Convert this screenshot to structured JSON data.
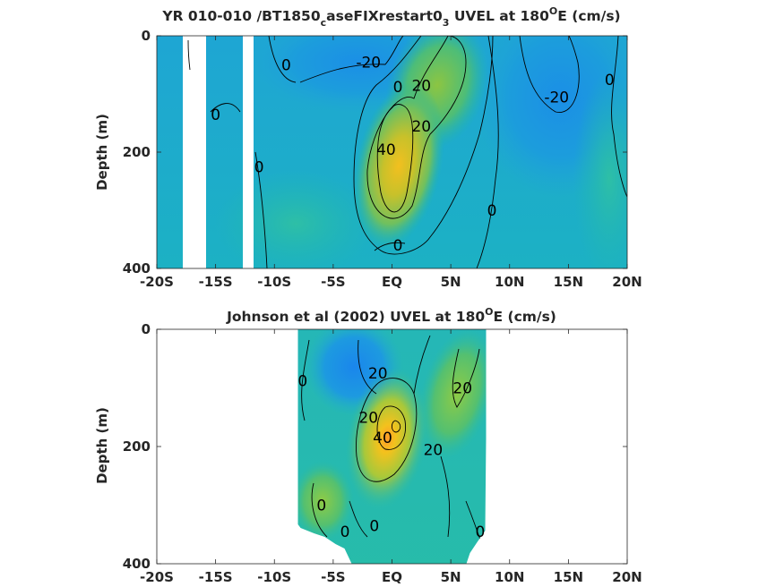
{
  "chart_data": [
    {
      "type": "heatmap",
      "title_main": "YR 010-010 /BT1850",
      "title_sub1": "c",
      "title_mid": "aseFIXrestart0",
      "title_sub2": "3",
      "title_tail_pre": " UVEL at 180",
      "title_sup": "O",
      "title_tail": "E (cm/s)",
      "ylabel": "Depth (m)",
      "xlim": [
        -20,
        20
      ],
      "ylim": [
        0,
        400
      ],
      "x_ticks": [
        -20,
        -15,
        -10,
        -5,
        0,
        5,
        10,
        15,
        20
      ],
      "x_tick_labels": [
        "-20S",
        "-15S",
        "-10S",
        "-5S",
        "EQ",
        "5N",
        "10N",
        "15N",
        "20N"
      ],
      "y_ticks": [
        0,
        200,
        400
      ],
      "y_tick_labels": [
        "0",
        "200",
        "400"
      ],
      "contour_levels_cm_s": [
        -20,
        0,
        20,
        40
      ],
      "data_gaps_lat": [
        [
          -17.5,
          -16.0
        ],
        [
          -12.5,
          -12.0
        ]
      ],
      "features": [
        {
          "label": "40",
          "lat": -0.5,
          "depth": 195,
          "description": "core"
        },
        {
          "label": "20",
          "lat": 2.5,
          "depth": 85
        },
        {
          "label": "20",
          "lat": 2.5,
          "depth": 155
        },
        {
          "label": "0",
          "lat": 0.5,
          "depth": 88
        },
        {
          "label": "0",
          "lat": 0.5,
          "depth": 360
        },
        {
          "label": "0",
          "lat": 8.5,
          "depth": 300
        },
        {
          "label": "0",
          "lat": 18.5,
          "depth": 75
        },
        {
          "label": "0",
          "lat": -9.0,
          "depth": 50
        },
        {
          "label": "0",
          "lat": -11.3,
          "depth": 225
        },
        {
          "label": "0",
          "lat": -15.0,
          "depth": 135
        },
        {
          "label": "-20",
          "lat": -2.0,
          "depth": 45
        },
        {
          "label": "-20",
          "lat": 14.0,
          "depth": 105
        }
      ]
    },
    {
      "type": "heatmap",
      "title_pre": "Johnson et al (2002) UVEL at 180",
      "title_sup": "O",
      "title_tail": "E (cm/s)",
      "ylabel": "Depth (m)",
      "xlim": [
        -20,
        20
      ],
      "ylim": [
        0,
        400
      ],
      "x_ticks": [
        -20,
        -15,
        -10,
        -5,
        0,
        5,
        10,
        15,
        20
      ],
      "x_tick_labels": [
        "-20S",
        "-15S",
        "-10S",
        "-5S",
        "EQ",
        "5N",
        "10N",
        "15N",
        "20N"
      ],
      "y_ticks": [
        0,
        200,
        400
      ],
      "y_tick_labels": [
        "0",
        "200",
        "400"
      ],
      "data_lat_range": [
        -8,
        8
      ],
      "features": [
        {
          "label": "40",
          "lat": -0.8,
          "depth": 185,
          "description": "core"
        },
        {
          "label": "20",
          "lat": -1.2,
          "depth": 75
        },
        {
          "label": "20",
          "lat": -2.0,
          "depth": 150
        },
        {
          "label": "20",
          "lat": 3.5,
          "depth": 205
        },
        {
          "label": "20",
          "lat": 6.0,
          "depth": 100
        },
        {
          "label": "0",
          "lat": -7.6,
          "depth": 88
        },
        {
          "label": "0",
          "lat": -6.0,
          "depth": 300
        },
        {
          "label": "0",
          "lat": -4.0,
          "depth": 345
        },
        {
          "label": "0",
          "lat": -1.5,
          "depth": 335
        },
        {
          "label": "0",
          "lat": 7.5,
          "depth": 345
        }
      ]
    }
  ]
}
